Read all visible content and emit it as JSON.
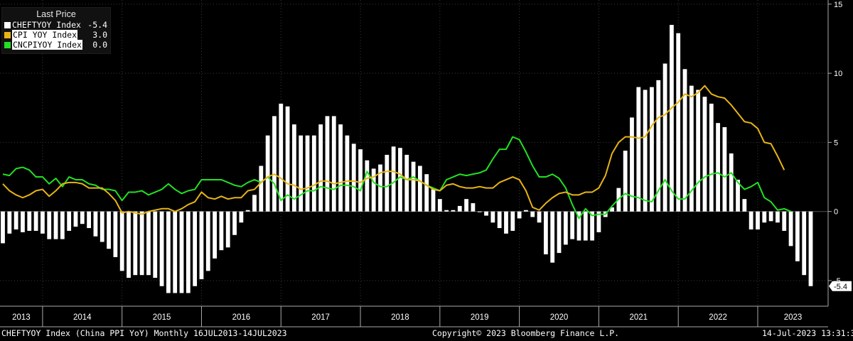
{
  "legend": {
    "title": "Last Price",
    "items": [
      {
        "name": "CHEFTYOY Index",
        "value": "-5.4",
        "color": "#ffffff"
      },
      {
        "name": "CPI YOY Index",
        "value": "3.0",
        "color": "#e7b416"
      },
      {
        "name": "CNCPIYOY Index",
        "value": "0.0",
        "color": "#22e022"
      }
    ]
  },
  "footer": {
    "left": "CHEFTYOY Index (China PPI YoY)  Monthly 16JUL2013-14JUL2023",
    "center": "Copyright© 2023 Bloomberg Finance L.P.",
    "right": "14-Jul-2023 13:31:39"
  },
  "last_value_labels": [
    "3.0",
    "0.0",
    "-5.4"
  ],
  "colors": {
    "background": "#000000",
    "bars": "#ffffff",
    "cpi_us": "#e7b416",
    "cpi_china": "#22e022",
    "grid": "#3a3a3a"
  },
  "chart_data": {
    "type": "bar",
    "start_month": "2013-07",
    "frequency": "monthly",
    "ylim": [
      -6.8,
      15.3
    ],
    "y_ticks": [
      15,
      10,
      5,
      0,
      -5
    ],
    "y_tick_labels": [
      "15",
      "10",
      "5",
      "0",
      "-5"
    ],
    "x_year_labels": [
      "2013",
      "2014",
      "2015",
      "2016",
      "2017",
      "2018",
      "2019",
      "2020",
      "2021",
      "2022",
      "2023"
    ],
    "grid": "dotted",
    "legend_position": "top-left",
    "series": [
      {
        "name": "CHEFTYOY Index",
        "type": "bar",
        "color": "#ffffff",
        "values": [
          -2.3,
          -1.6,
          -1.3,
          -1.5,
          -1.4,
          -1.4,
          -1.6,
          -2.0,
          -2.0,
          -2.0,
          -1.4,
          -1.1,
          -0.9,
          -1.2,
          -1.8,
          -2.2,
          -2.7,
          -3.3,
          -4.3,
          -4.8,
          -4.6,
          -4.6,
          -4.6,
          -4.8,
          -5.4,
          -5.9,
          -5.9,
          -5.9,
          -5.9,
          -5.4,
          -4.9,
          -4.3,
          -3.4,
          -2.8,
          -2.6,
          -1.7,
          -0.8,
          0.1,
          1.2,
          3.3,
          5.5,
          6.9,
          7.8,
          7.6,
          6.3,
          5.5,
          5.5,
          5.5,
          6.3,
          6.9,
          6.9,
          6.3,
          5.5,
          4.9,
          4.5,
          3.7,
          3.1,
          3.4,
          4.1,
          4.7,
          4.6,
          4.1,
          3.6,
          3.3,
          2.7,
          1.6,
          0.9,
          0.1,
          0.1,
          0.4,
          0.9,
          0.6,
          0.0,
          -0.3,
          -0.8,
          -1.2,
          -1.6,
          -1.4,
          -0.5,
          0.1,
          -0.4,
          -0.8,
          -3.1,
          -3.7,
          -3.0,
          -2.4,
          -2.0,
          -2.1,
          -2.1,
          -2.1,
          -1.5,
          -0.4,
          0.3,
          1.7,
          4.4,
          6.8,
          9.0,
          8.8,
          9.0,
          9.5,
          10.7,
          13.5,
          12.9,
          10.3,
          9.1,
          8.8,
          8.3,
          7.8,
          6.4,
          6.1,
          4.2,
          2.3,
          0.9,
          -1.3,
          -1.3,
          -0.8,
          -0.7,
          -0.8,
          -1.4,
          -2.5,
          -3.6,
          -4.6,
          -5.4
        ]
      },
      {
        "name": "CPI YOY Index",
        "type": "line",
        "color": "#e7b416",
        "values": [
          2.0,
          1.5,
          1.2,
          1.0,
          1.2,
          1.5,
          1.6,
          1.1,
          1.5,
          2.0,
          2.1,
          2.1,
          2.0,
          1.7,
          1.7,
          1.7,
          1.3,
          0.8,
          -0.1,
          0.0,
          -0.1,
          -0.2,
          0.0,
          0.1,
          0.2,
          0.2,
          0.0,
          0.2,
          0.5,
          0.7,
          1.4,
          1.0,
          0.9,
          1.1,
          0.9,
          1.0,
          1.0,
          1.5,
          1.6,
          2.1,
          2.5,
          2.7,
          2.4,
          2.0,
          1.9,
          1.6,
          1.7,
          1.9,
          2.2,
          2.2,
          2.0,
          2.1,
          2.2,
          2.2,
          2.1,
          2.4,
          2.5,
          2.8,
          2.9,
          2.9,
          2.7,
          2.3,
          2.3,
          2.2,
          1.9,
          1.6,
          1.5,
          1.9,
          2.0,
          1.8,
          1.7,
          1.7,
          1.8,
          1.7,
          1.7,
          2.1,
          2.3,
          2.5,
          2.3,
          1.5,
          0.3,
          0.1,
          0.6,
          1.0,
          1.3,
          1.4,
          1.2,
          1.2,
          1.4,
          1.4,
          1.7,
          2.6,
          4.2,
          5.0,
          5.4,
          5.4,
          5.3,
          5.4,
          6.2,
          6.8,
          7.0,
          7.5,
          7.9,
          8.5,
          8.3,
          8.6,
          9.1,
          8.5,
          8.3,
          8.2,
          7.7,
          7.1,
          6.5,
          6.4,
          6.0,
          5.0,
          4.9,
          4.0,
          3.0
        ]
      },
      {
        "name": "CNCPIYOY Index",
        "type": "line",
        "color": "#22e022",
        "values": [
          2.7,
          2.6,
          3.1,
          3.2,
          3.0,
          2.5,
          2.5,
          2.0,
          2.4,
          1.8,
          2.5,
          2.3,
          2.3,
          2.0,
          1.9,
          1.6,
          1.6,
          1.5,
          0.8,
          1.4,
          1.4,
          1.5,
          1.2,
          1.4,
          1.6,
          2.0,
          1.6,
          1.3,
          1.5,
          1.6,
          2.3,
          2.3,
          2.3,
          2.3,
          2.1,
          1.9,
          1.8,
          2.1,
          2.3,
          2.1,
          2.5,
          2.0,
          0.8,
          1.2,
          0.9,
          1.2,
          1.5,
          1.5,
          1.8,
          1.7,
          1.6,
          1.9,
          1.9,
          1.8,
          1.5,
          2.9,
          2.1,
          1.8,
          1.8,
          2.1,
          2.5,
          2.3,
          2.5,
          2.2,
          1.9,
          1.7,
          1.5,
          2.3,
          2.5,
          2.7,
          2.6,
          2.7,
          2.8,
          3.0,
          3.8,
          4.5,
          4.5,
          5.4,
          5.2,
          4.3,
          3.3,
          2.5,
          2.5,
          2.7,
          2.4,
          1.7,
          0.5,
          -0.5,
          0.2,
          -0.3,
          -0.2,
          -0.2,
          0.4,
          0.9,
          1.3,
          1.1,
          1.0,
          0.8,
          0.7,
          1.5,
          2.3,
          1.5,
          0.9,
          0.9,
          1.5,
          2.1,
          2.5,
          2.7,
          2.8,
          2.5,
          2.8,
          2.1,
          1.6,
          1.8,
          2.1,
          1.0,
          0.7,
          0.1,
          0.2,
          0.0
        ]
      }
    ]
  }
}
